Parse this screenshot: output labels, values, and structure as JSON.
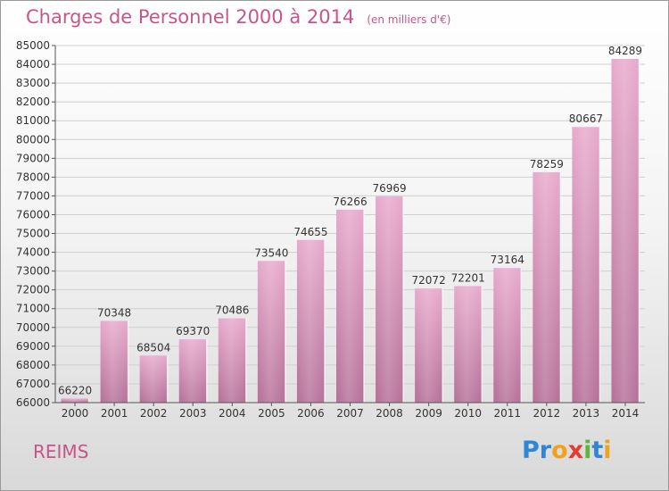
{
  "header": {
    "title": "Charges de Personnel 2000 à 2014",
    "subtitle": "(en milliers d'€)"
  },
  "footer": {
    "city": "REIMS",
    "logo_letters": [
      {
        "char": "P",
        "color": "#2f86d6"
      },
      {
        "char": "r",
        "color": "#2f86d6"
      },
      {
        "char": "o",
        "color": "#f0a21c"
      },
      {
        "char": "x",
        "color": "#e43d2f"
      },
      {
        "char": "i",
        "color": "#5db53a"
      },
      {
        "char": "t",
        "color": "#2f86d6"
      },
      {
        "char": "i",
        "color": "#f0a21c"
      }
    ]
  },
  "chart_data": {
    "type": "bar",
    "categories": [
      "2000",
      "2001",
      "2002",
      "2003",
      "2004",
      "2005",
      "2006",
      "2007",
      "2008",
      "2009",
      "2010",
      "2011",
      "2012",
      "2013",
      "2014"
    ],
    "values": [
      66220,
      70348,
      68504,
      69370,
      70486,
      73540,
      74655,
      76266,
      76969,
      72072,
      72201,
      73164,
      78259,
      80667,
      84289
    ],
    "ylim": [
      66000,
      85000
    ],
    "ytick_step": 1000,
    "grid": true,
    "bar_color": "#d98fb6",
    "bar_color_dark": "#b86d98",
    "value_labels": true
  }
}
